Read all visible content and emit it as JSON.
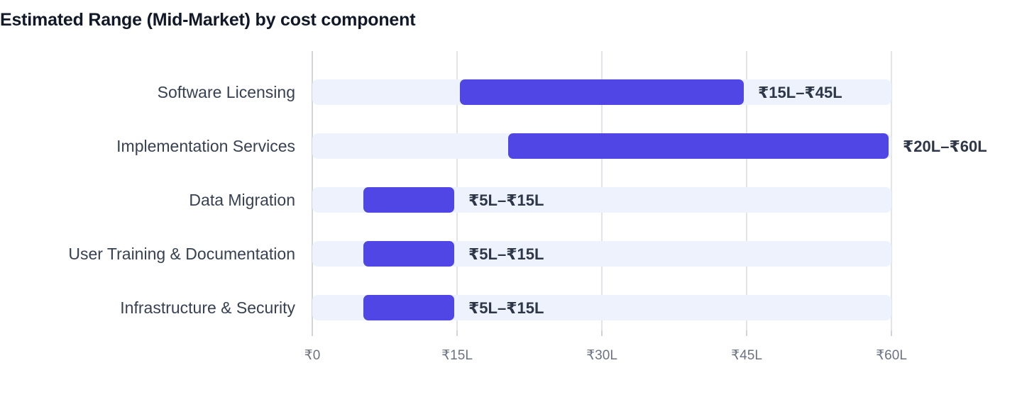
{
  "chart_data": {
    "type": "bar",
    "orientation": "horizontal-range",
    "title": "Estimated Range (Mid-Market) by cost component",
    "xlabel": "",
    "ylabel": "",
    "unit": "₹ Lakh",
    "xlim": [
      0,
      60
    ],
    "ticks": [
      {
        "value": 0,
        "label": "₹0"
      },
      {
        "value": 15,
        "label": "₹15L"
      },
      {
        "value": 30,
        "label": "₹30L"
      },
      {
        "value": 45,
        "label": "₹45L"
      },
      {
        "value": 60,
        "label": "₹60L"
      }
    ],
    "categories": [
      "Software Licensing",
      "Implementation Services",
      "Data Migration",
      "User Training & Documentation",
      "Infrastructure & Security"
    ],
    "ranges": [
      {
        "low": 15,
        "high": 45,
        "label": "₹15L–₹45L"
      },
      {
        "low": 20,
        "high": 60,
        "label": "₹20L–₹60L"
      },
      {
        "low": 5,
        "high": 15,
        "label": "₹5L–₹15L"
      },
      {
        "low": 5,
        "high": 15,
        "label": "₹5L–₹15L"
      },
      {
        "low": 5,
        "high": 15,
        "label": "₹5L–₹15L"
      }
    ],
    "grid": true,
    "legend": "none",
    "colors": {
      "bar": "#4f46e5",
      "track": "#eef2fd",
      "grid": "#e2e4e9",
      "axis": "#d1d5db"
    }
  }
}
